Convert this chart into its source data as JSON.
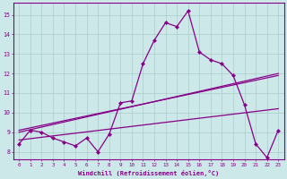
{
  "xlabel": "Windchill (Refroidissement éolien,°C)",
  "bg_color": "#cce8e8",
  "line_color": "#880088",
  "grid_color": "#aacccc",
  "xlim": [
    -0.5,
    23.5
  ],
  "ylim": [
    7.6,
    15.6
  ],
  "xticks": [
    0,
    1,
    2,
    3,
    4,
    5,
    6,
    7,
    8,
    9,
    10,
    11,
    12,
    13,
    14,
    15,
    16,
    17,
    18,
    19,
    20,
    21,
    22,
    23
  ],
  "yticks": [
    8,
    9,
    10,
    11,
    12,
    13,
    14,
    15
  ],
  "main_data": [
    8.4,
    9.1,
    9.0,
    8.7,
    8.5,
    8.3,
    8.7,
    8.0,
    8.9,
    10.5,
    10.6,
    12.5,
    13.7,
    14.6,
    14.4,
    15.2,
    13.1,
    12.7,
    12.5,
    11.9,
    10.4,
    8.4,
    7.7,
    9.1
  ],
  "trend1_x": [
    0,
    23
  ],
  "trend1_y": [
    9.0,
    12.0
  ],
  "trend2_x": [
    0,
    23
  ],
  "trend2_y": [
    9.1,
    11.9
  ],
  "trend3_x": [
    0,
    23
  ],
  "trend3_y": [
    8.6,
    10.2
  ]
}
